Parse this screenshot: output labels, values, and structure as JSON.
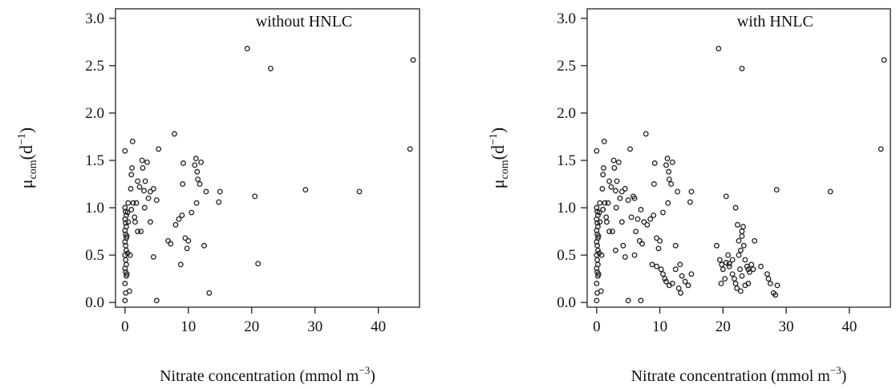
{
  "chart_data": [
    {
      "type": "scatter",
      "title": "without HNLC",
      "xlabel": "Nitrate concentration (mmol m⁻³)",
      "ylabel": "μcom(d⁻¹)",
      "ylabel_main": "μ",
      "ylabel_sub": "com",
      "ylabel_unit_pre": "(d",
      "ylabel_unit_sup": "−1",
      "ylabel_unit_post": ")",
      "xlabel_main": "Nitrate concentration (mmol m",
      "xlabel_sup": "−3",
      "xlabel_post": ")",
      "xlim": [
        -1.5,
        46.5
      ],
      "ylim": [
        -0.05,
        3.1
      ],
      "xticks": [
        0,
        10,
        20,
        30,
        40
      ],
      "xtick_labels": [
        "0",
        "10",
        "20",
        "30",
        "40"
      ],
      "yticks": [
        0.0,
        0.5,
        1.0,
        1.5,
        2.0,
        2.5,
        3.0
      ],
      "ytick_labels": [
        "0.0",
        "0.5",
        "1.0",
        "1.5",
        "2.0",
        "2.5",
        "3.0"
      ],
      "grid": false,
      "series": [
        {
          "marker": "open-circle",
          "points": [
            [
              0.0,
              0.02
            ],
            [
              0.1,
              0.1
            ],
            [
              0.0,
              0.2
            ],
            [
              0.2,
              0.28
            ],
            [
              0.1,
              0.32
            ],
            [
              0.0,
              0.36
            ],
            [
              0.2,
              0.4
            ],
            [
              0.1,
              0.45
            ],
            [
              0.0,
              0.5
            ],
            [
              0.2,
              0.55
            ],
            [
              0.1,
              0.6
            ],
            [
              0.0,
              0.64
            ],
            [
              0.2,
              0.68
            ],
            [
              0.1,
              0.72
            ],
            [
              0.0,
              0.76
            ],
            [
              0.2,
              0.8
            ],
            [
              0.1,
              0.84
            ],
            [
              0.0,
              0.88
            ],
            [
              0.2,
              0.92
            ],
            [
              0.1,
              0.96
            ],
            [
              0.0,
              1.0
            ],
            [
              0.3,
              0.3
            ],
            [
              0.4,
              0.52
            ],
            [
              0.3,
              0.7
            ],
            [
              0.5,
              0.85
            ],
            [
              0.4,
              0.95
            ],
            [
              0.0,
              1.6
            ],
            [
              0.5,
              1.05
            ],
            [
              0.7,
              0.12
            ],
            [
              0.9,
              1.2
            ],
            [
              1.0,
              1.35
            ],
            [
              1.1,
              1.42
            ],
            [
              1.2,
              1.7
            ],
            [
              0.8,
              0.5
            ],
            [
              1.0,
              0.98
            ],
            [
              1.3,
              1.05
            ],
            [
              1.5,
              0.9
            ],
            [
              1.6,
              0.85
            ],
            [
              1.8,
              1.05
            ],
            [
              2.0,
              1.28
            ],
            [
              2.3,
              1.22
            ],
            [
              2.0,
              0.75
            ],
            [
              2.5,
              0.75
            ],
            [
              2.7,
              1.5
            ],
            [
              2.8,
              1.42
            ],
            [
              3.0,
              1.18
            ],
            [
              3.1,
              1.0
            ],
            [
              3.2,
              1.28
            ],
            [
              3.5,
              1.48
            ],
            [
              3.7,
              1.1
            ],
            [
              4.0,
              1.17
            ],
            [
              4.0,
              0.85
            ],
            [
              4.5,
              1.2
            ],
            [
              5.0,
              1.08
            ],
            [
              5.3,
              1.62
            ],
            [
              4.5,
              0.48
            ],
            [
              5.0,
              0.02
            ],
            [
              6.8,
              0.65
            ],
            [
              7.2,
              0.62
            ],
            [
              7.8,
              1.78
            ],
            [
              8.0,
              0.82
            ],
            [
              8.5,
              0.88
            ],
            [
              8.8,
              0.4
            ],
            [
              9.0,
              0.92
            ],
            [
              9.1,
              1.25
            ],
            [
              9.2,
              1.47
            ],
            [
              9.5,
              0.68
            ],
            [
              9.8,
              0.57
            ],
            [
              10.0,
              0.65
            ],
            [
              10.5,
              0.95
            ],
            [
              11.0,
              1.45
            ],
            [
              11.2,
              1.52
            ],
            [
              11.4,
              1.38
            ],
            [
              11.5,
              1.3
            ],
            [
              11.8,
              1.25
            ],
            [
              12.0,
              1.48
            ],
            [
              11.3,
              1.05
            ],
            [
              12.5,
              0.6
            ],
            [
              12.8,
              1.17
            ],
            [
              13.3,
              0.1
            ],
            [
              14.8,
              1.06
            ],
            [
              15.0,
              1.17
            ],
            [
              19.3,
              2.68
            ],
            [
              20.5,
              1.12
            ],
            [
              21.0,
              0.41
            ],
            [
              23.0,
              2.47
            ],
            [
              28.5,
              1.19
            ],
            [
              37.0,
              1.17
            ],
            [
              45.0,
              1.62
            ],
            [
              45.5,
              2.56
            ]
          ]
        }
      ]
    },
    {
      "type": "scatter",
      "title": "with HNLC",
      "xlabel": "Nitrate concentration (mmol m⁻³)",
      "ylabel": "μcom(d⁻¹)",
      "ylabel_main": "μ",
      "ylabel_sub": "com",
      "ylabel_unit_pre": "(d",
      "ylabel_unit_sup": "−1",
      "ylabel_unit_post": ")",
      "xlabel_main": "Nitrate concentration (mmol m",
      "xlabel_sup": "−3",
      "xlabel_post": ")",
      "xlim": [
        -1.5,
        46.5
      ],
      "ylim": [
        -0.05,
        3.1
      ],
      "xticks": [
        0,
        10,
        20,
        30,
        40
      ],
      "xtick_labels": [
        "0",
        "10",
        "20",
        "30",
        "40"
      ],
      "yticks": [
        0.0,
        0.5,
        1.0,
        1.5,
        2.0,
        2.5,
        3.0
      ],
      "ytick_labels": [
        "0.0",
        "0.5",
        "1.0",
        "1.5",
        "2.0",
        "2.5",
        "3.0"
      ],
      "grid": false,
      "series": [
        {
          "marker": "open-circle",
          "points": [
            [
              0.0,
              0.02
            ],
            [
              0.1,
              0.1
            ],
            [
              0.0,
              0.2
            ],
            [
              0.2,
              0.28
            ],
            [
              0.1,
              0.32
            ],
            [
              0.0,
              0.36
            ],
            [
              0.2,
              0.4
            ],
            [
              0.1,
              0.45
            ],
            [
              0.0,
              0.5
            ],
            [
              0.2,
              0.55
            ],
            [
              0.1,
              0.6
            ],
            [
              0.0,
              0.64
            ],
            [
              0.2,
              0.68
            ],
            [
              0.1,
              0.72
            ],
            [
              0.0,
              0.76
            ],
            [
              0.2,
              0.8
            ],
            [
              0.1,
              0.84
            ],
            [
              0.0,
              0.88
            ],
            [
              0.2,
              0.92
            ],
            [
              0.1,
              0.96
            ],
            [
              0.0,
              1.0
            ],
            [
              0.3,
              0.3
            ],
            [
              0.4,
              0.52
            ],
            [
              0.3,
              0.7
            ],
            [
              0.5,
              0.85
            ],
            [
              0.4,
              0.95
            ],
            [
              0.0,
              1.6
            ],
            [
              0.5,
              1.05
            ],
            [
              0.7,
              0.12
            ],
            [
              0.9,
              1.2
            ],
            [
              1.0,
              1.35
            ],
            [
              1.1,
              1.42
            ],
            [
              1.2,
              1.7
            ],
            [
              0.8,
              0.5
            ],
            [
              1.0,
              0.98
            ],
            [
              1.3,
              1.05
            ],
            [
              1.5,
              0.9
            ],
            [
              1.6,
              0.85
            ],
            [
              1.8,
              1.05
            ],
            [
              2.0,
              1.28
            ],
            [
              2.3,
              1.22
            ],
            [
              2.0,
              0.75
            ],
            [
              2.5,
              0.75
            ],
            [
              2.7,
              1.5
            ],
            [
              2.8,
              1.42
            ],
            [
              3.0,
              1.18
            ],
            [
              3.1,
              1.0
            ],
            [
              3.2,
              1.28
            ],
            [
              3.5,
              1.48
            ],
            [
              3.7,
              1.1
            ],
            [
              4.0,
              1.17
            ],
            [
              4.0,
              0.85
            ],
            [
              4.5,
              1.2
            ],
            [
              5.0,
              1.08
            ],
            [
              5.3,
              1.62
            ],
            [
              4.5,
              0.48
            ],
            [
              5.0,
              0.02
            ],
            [
              6.8,
              0.65
            ],
            [
              7.2,
              0.62
            ],
            [
              7.8,
              1.78
            ],
            [
              8.0,
              0.82
            ],
            [
              8.5,
              0.88
            ],
            [
              8.8,
              0.4
            ],
            [
              9.0,
              0.92
            ],
            [
              9.1,
              1.25
            ],
            [
              9.2,
              1.47
            ],
            [
              9.5,
              0.68
            ],
            [
              9.8,
              0.57
            ],
            [
              10.0,
              0.65
            ],
            [
              10.5,
              0.95
            ],
            [
              11.0,
              1.45
            ],
            [
              11.2,
              1.52
            ],
            [
              11.4,
              1.38
            ],
            [
              11.5,
              1.3
            ],
            [
              11.8,
              1.25
            ],
            [
              12.0,
              1.48
            ],
            [
              11.3,
              1.05
            ],
            [
              12.5,
              0.6
            ],
            [
              12.8,
              1.17
            ],
            [
              13.3,
              0.1
            ],
            [
              14.8,
              1.06
            ],
            [
              15.0,
              1.17
            ],
            [
              19.3,
              2.68
            ],
            [
              20.5,
              1.12
            ],
            [
              21.0,
              0.41
            ],
            [
              23.0,
              2.47
            ],
            [
              28.5,
              1.19
            ],
            [
              37.0,
              1.17
            ],
            [
              45.0,
              1.62
            ],
            [
              45.5,
              2.56
            ],
            [
              3.0,
              0.55
            ],
            [
              4.2,
              0.6
            ],
            [
              5.5,
              0.9
            ],
            [
              6.0,
              1.1
            ],
            [
              6.2,
              0.75
            ],
            [
              6.5,
              0.88
            ],
            [
              7.0,
              0.98
            ],
            [
              7.5,
              0.85
            ],
            [
              6.0,
              0.5
            ],
            [
              5.8,
              1.12
            ],
            [
              9.5,
              0.38
            ],
            [
              10.2,
              0.35
            ],
            [
              10.5,
              0.3
            ],
            [
              10.8,
              0.25
            ],
            [
              11.0,
              0.22
            ],
            [
              11.5,
              0.18
            ],
            [
              12.0,
              0.2
            ],
            [
              12.5,
              0.35
            ],
            [
              13.0,
              0.15
            ],
            [
              13.5,
              0.28
            ],
            [
              14.0,
              0.22
            ],
            [
              14.5,
              0.18
            ],
            [
              15.0,
              0.3
            ],
            [
              13.2,
              0.4
            ],
            [
              7.0,
              0.02
            ],
            [
              19.0,
              0.6
            ],
            [
              19.5,
              0.45
            ],
            [
              19.8,
              0.4
            ],
            [
              20.0,
              0.35
            ],
            [
              20.3,
              0.25
            ],
            [
              19.7,
              0.2
            ],
            [
              20.5,
              0.42
            ],
            [
              21.0,
              0.38
            ],
            [
              21.5,
              0.3
            ],
            [
              21.8,
              0.25
            ],
            [
              22.0,
              0.2
            ],
            [
              22.2,
              0.15
            ],
            [
              22.5,
              0.5
            ],
            [
              22.0,
              1.0
            ],
            [
              22.3,
              0.82
            ],
            [
              22.5,
              0.65
            ],
            [
              22.8,
              0.55
            ],
            [
              23.0,
              0.7
            ],
            [
              23.2,
              0.8
            ],
            [
              23.0,
              0.75
            ],
            [
              23.3,
              0.6
            ],
            [
              23.5,
              0.45
            ],
            [
              23.8,
              0.38
            ],
            [
              24.0,
              0.35
            ],
            [
              24.2,
              0.32
            ],
            [
              24.5,
              0.4
            ],
            [
              24.8,
              0.35
            ],
            [
              25.0,
              0.65
            ],
            [
              23.0,
              0.28
            ],
            [
              23.5,
              0.18
            ],
            [
              22.8,
              0.12
            ],
            [
              21.5,
              0.45
            ],
            [
              20.8,
              0.5
            ],
            [
              22.7,
              0.35
            ],
            [
              24.0,
              0.2
            ],
            [
              27.0,
              0.3
            ],
            [
              27.2,
              0.25
            ],
            [
              27.5,
              0.2
            ],
            [
              28.0,
              0.1
            ],
            [
              28.3,
              0.08
            ],
            [
              28.6,
              0.18
            ],
            [
              26.0,
              0.38
            ]
          ]
        }
      ]
    }
  ]
}
